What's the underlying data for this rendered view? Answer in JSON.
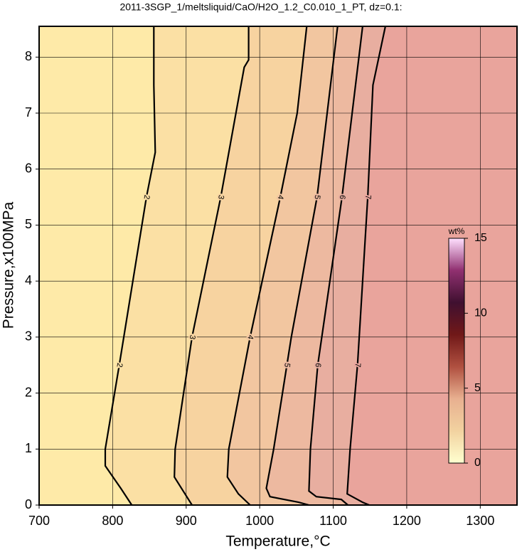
{
  "chart_data": {
    "type": "contour",
    "title": "2011-3SGP_1/meltsliquid/CaO/H2O_1.2_C0.010_1_PT, dz=0.1:",
    "x_label": "Temperature,°C",
    "y_label": "Pressure,x100MPa",
    "xlim": [
      700,
      1350
    ],
    "xticks": [
      700,
      800,
      900,
      1000,
      1100,
      1200,
      1300
    ],
    "ylim": [
      0,
      8.55
    ],
    "yticks": [
      0,
      1,
      2,
      3,
      4,
      5,
      6,
      7,
      8
    ],
    "grid": true,
    "fill_colors": [
      "#feeaa8",
      "#fbe0a4",
      "#f7d3a0",
      "#f2c6a0",
      "#edb9a0",
      "#e8aea0",
      "#e9a49c",
      "#fba8a0"
    ],
    "series": [
      {
        "name": "2",
        "x": [
          826,
          811,
          790,
          790,
          809,
          846,
          858,
          856,
          856
        ],
        "values": [
          0,
          0.3,
          0.7,
          1,
          2.5,
          5.5,
          6.3,
          7.5,
          8.55
        ]
      },
      {
        "name": "3",
        "x": [
          908,
          896,
          884,
          885,
          908,
          947,
          979,
          985,
          985
        ],
        "values": [
          0,
          0.25,
          0.5,
          1,
          3,
          5.5,
          7.82,
          7.95,
          8.55
        ]
      },
      {
        "name": "4",
        "x": [
          987,
          971,
          956,
          958,
          987,
          1028,
          1051,
          1064
        ],
        "values": [
          0,
          0.2,
          0.5,
          1,
          3,
          5.5,
          7,
          8.55
        ]
      },
      {
        "name": "5",
        "x": [
          1067,
          1053,
          1014,
          1009,
          1019,
          1043,
          1078,
          1106
        ],
        "values": [
          0,
          0.05,
          0.15,
          0.3,
          1,
          3,
          5.5,
          8.55
        ]
      },
      {
        "name": "6",
        "x": [
          1120,
          1111,
          1077,
          1067,
          1069,
          1079,
          1112,
          1140
        ],
        "values": [
          0,
          0.1,
          0.15,
          0.25,
          1,
          2.5,
          5.5,
          8.55
        ]
      },
      {
        "name": "7",
        "x": [
          1149,
          1140,
          1119,
          1123,
          1133,
          1147,
          1154,
          1171
        ],
        "values": [
          0,
          0.05,
          0.2,
          1,
          2.5,
          5.5,
          7.5,
          8.55
        ]
      }
    ],
    "colorbar": {
      "label": "wt%",
      "lim": [
        0,
        15
      ],
      "ticks": [
        0,
        5,
        10,
        15
      ],
      "colors": [
        "#ffffd0",
        "#f2d2a0",
        "#e8b090",
        "#b05040",
        "#701818",
        "#401030",
        "#903070",
        "#ffe0ff"
      ]
    }
  }
}
